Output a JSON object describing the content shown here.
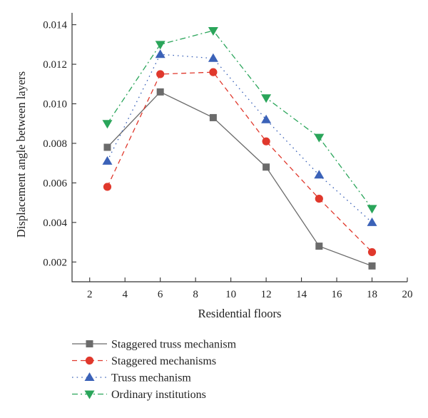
{
  "chart_data": {
    "type": "line",
    "xlabel": "Residential floors",
    "ylabel": "Displacement angle between layers",
    "xlim": [
      1,
      20
    ],
    "ylim": [
      0.001,
      0.0146
    ],
    "xticks": [
      2,
      4,
      6,
      8,
      10,
      12,
      14,
      16,
      18,
      20
    ],
    "yticks": [
      0.002,
      0.004,
      0.006,
      0.008,
      0.01,
      0.012,
      0.014
    ],
    "ytick_labels": [
      "0.002",
      "0.004",
      "0.006",
      "0.008",
      "0.010",
      "0.012",
      "0.014"
    ],
    "grid": false,
    "legend_position": "bottom",
    "x": [
      3,
      6,
      9,
      12,
      15,
      18
    ],
    "series": [
      {
        "name": "Staggered truss mechanism",
        "values": [
          0.0078,
          0.0106,
          0.0093,
          0.0068,
          0.0028,
          0.0018
        ],
        "color": "#6b6b6b",
        "marker": "square",
        "line_style": "solid"
      },
      {
        "name": "Staggered mechanisms",
        "values": [
          0.0058,
          0.0115,
          0.0116,
          0.0081,
          0.0052,
          0.0025
        ],
        "color": "#e0382c",
        "marker": "circle",
        "line_style": "dashed"
      },
      {
        "name": "Truss mechanism",
        "values": [
          0.0071,
          0.0125,
          0.0123,
          0.0092,
          0.0064,
          0.004
        ],
        "color": "#3b62b8",
        "marker": "triangle-up",
        "line_style": "dotted"
      },
      {
        "name": "Ordinary institutions",
        "values": [
          0.009,
          0.013,
          0.0137,
          0.0103,
          0.0083,
          0.0047
        ],
        "color": "#2aa55a",
        "marker": "triangle-down",
        "line_style": "dash-dot"
      }
    ]
  }
}
